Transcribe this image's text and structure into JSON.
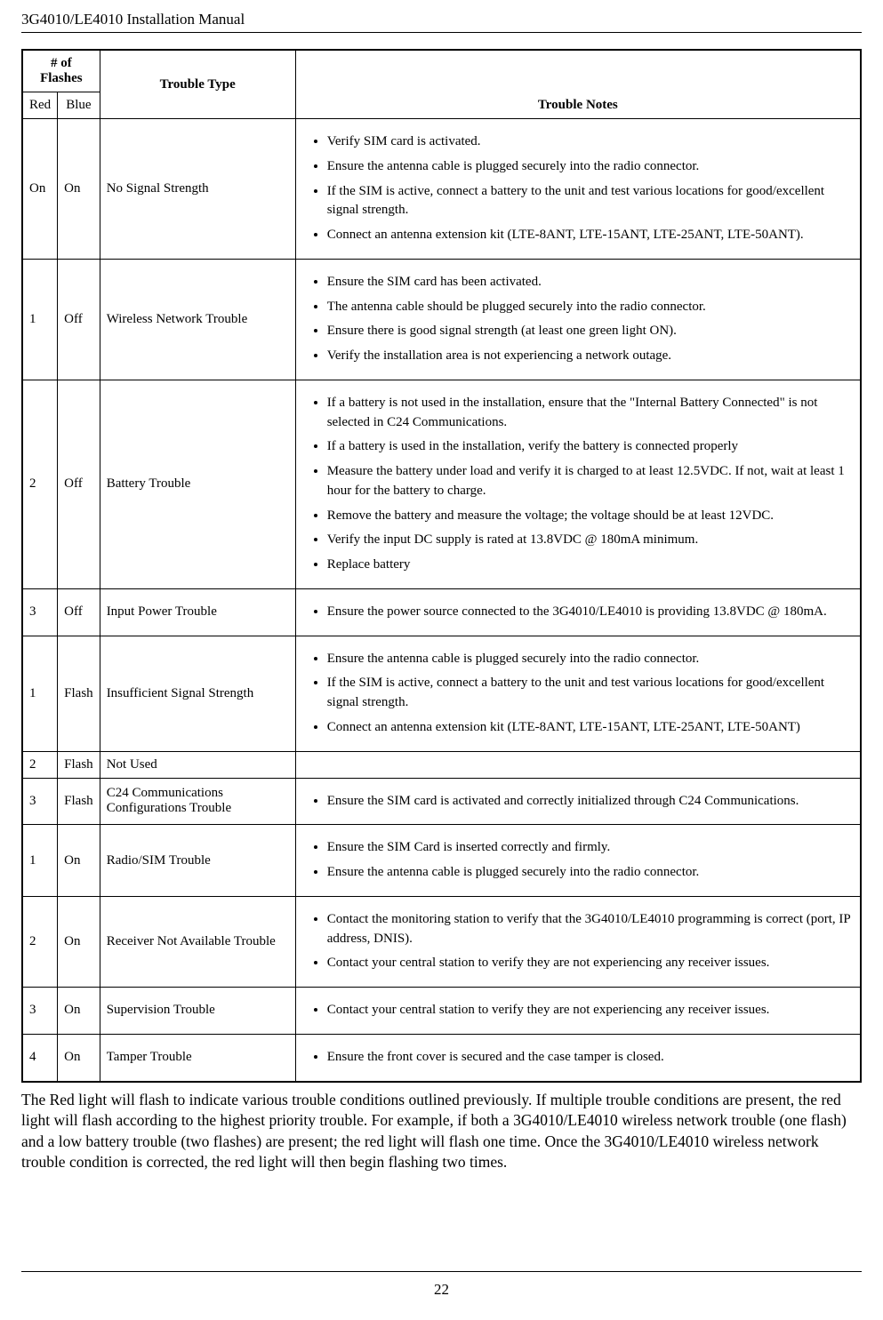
{
  "document": {
    "header_title": "3G4010/LE4010 Installation Manual",
    "page_number": "22",
    "body_paragraph": "The Red light will flash to indicate various trouble conditions outlined previously. If multiple trouble conditions are present, the red light will flash according to the highest priority trouble. For example, if both a 3G4010/LE4010 wireless network trouble (one flash) and a low battery trouble (two flashes) are present; the red light will flash one time. Once the 3G4010/LE4010 wireless network trouble condition is corrected, the red light will then begin flashing two times."
  },
  "table": {
    "headers": {
      "flashes": "# of Flashes",
      "red": "Red",
      "blue": "Blue",
      "type": "Trouble Type",
      "notes": "Trouble Notes"
    },
    "rows": [
      {
        "red": "On",
        "blue": "On",
        "type": "No Signal Strength",
        "notes": [
          "Verify SIM card is activated.",
          "Ensure the antenna cable is plugged securely into the radio connector.",
          "If the SIM is active, connect a battery to the unit and test various locations for good/excellent signal strength.",
          "Connect an antenna extension kit (LTE-8ANT, LTE-15ANT, LTE-25ANT, LTE-50ANT)."
        ]
      },
      {
        "red": "1",
        "blue": "Off",
        "type": "Wireless Network Trouble",
        "notes": [
          "Ensure the SIM card has been activated.",
          "The antenna cable should be plugged securely into the radio connector.",
          "Ensure there is good signal strength (at least one green light ON).",
          "Verify the installation area is not experiencing a network outage."
        ]
      },
      {
        "red": "2",
        "blue": "Off",
        "type": "Battery Trouble",
        "notes": [
          "If a battery is not used in the installation, ensure that the \"Internal Battery Connected\" is not selected in C24 Communications.",
          "If a battery is used in the installation, verify the battery is connected properly",
          "Measure the battery under load and verify it is charged to at least 12.5VDC. If not, wait at least 1 hour for the battery to charge.",
          "Remove the battery and measure the voltage; the voltage should be at least 12VDC.",
          "Verify the input DC supply is rated at 13.8VDC @ 180mA minimum.",
          "Replace battery"
        ]
      },
      {
        "red": "3",
        "blue": "Off",
        "type": "Input Power Trouble",
        "notes": [
          "Ensure the power source connected to the 3G4010/LE4010 is providing 13.8VDC @ 180mA."
        ]
      },
      {
        "red": "1",
        "blue": "Flash",
        "type": "Insufficient Signal Strength",
        "notes": [
          "Ensure the antenna cable is plugged securely into the radio connector.",
          "If the SIM is active, connect a battery to the unit and test various locations for good/excellent signal strength.",
          "Connect an antenna extension kit (LTE-8ANT, LTE-15ANT, LTE-25ANT, LTE-50ANT)"
        ]
      },
      {
        "red": "2",
        "blue": "Flash",
        "type": "Not Used",
        "notes": []
      },
      {
        "red": "3",
        "blue": "Flash",
        "type": "C24 Communications Configurations Trouble",
        "notes": [
          "Ensure the SIM card is activated and correctly initialized through C24 Communications."
        ]
      },
      {
        "red": "1",
        "blue": "On",
        "type": "Radio/SIM Trouble",
        "notes": [
          "Ensure the SIM Card is inserted correctly and firmly.",
          "Ensure the antenna cable is plugged securely into the radio connector."
        ]
      },
      {
        "red": "2",
        "blue": "On",
        "type": "Receiver Not Available Trouble",
        "notes": [
          "Contact the monitoring station to verify that the 3G4010/LE4010 programming is correct (port, IP address, DNIS).",
          "Contact your central station to verify they are not experiencing any receiver issues."
        ]
      },
      {
        "red": "3",
        "blue": "On",
        "type": "Supervision Trouble",
        "notes": [
          "Contact your central station to verify they are not experiencing any receiver issues."
        ]
      },
      {
        "red": "4",
        "blue": "On",
        "type": "Tamper Trouble",
        "notes": [
          "Ensure the front cover is secured and the case tamper is closed."
        ]
      }
    ]
  },
  "style": {
    "body_font": "Times New Roman",
    "background_color": "#ffffff",
    "text_color": "#000000",
    "border_color": "#000000",
    "body_fontsize_pt": 12,
    "header_fontsize_pt": 13,
    "table_fontsize_pt": 11
  }
}
